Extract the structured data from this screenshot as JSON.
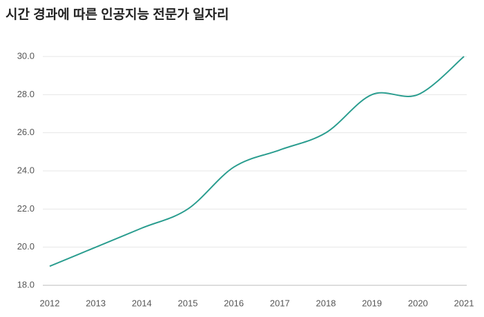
{
  "chart_data": {
    "type": "line",
    "title": "시간 경과에 따른 인공지능 전문가 일자리",
    "x": [
      2012,
      2013,
      2014,
      2015,
      2016,
      2017,
      2018,
      2019,
      2020,
      2021
    ],
    "series": [
      {
        "name": "인공지능 전문가 일자리",
        "color": "#2a9d8f",
        "values": [
          19.0,
          20.0,
          21.0,
          22.0,
          24.2,
          25.1,
          26.0,
          28.0,
          28.0,
          30.0
        ]
      }
    ],
    "xlim": [
      2012,
      2021
    ],
    "xticks": [
      2012,
      2013,
      2014,
      2015,
      2016,
      2017,
      2018,
      2019,
      2020,
      2021
    ],
    "ylim": [
      18,
      30
    ],
    "yticks": [
      {
        "value": 18,
        "label": "18.0"
      },
      {
        "value": 20,
        "label": "20.0"
      },
      {
        "value": 22,
        "label": "22.0"
      },
      {
        "value": 24,
        "label": "24.0"
      },
      {
        "value": 26,
        "label": "26.0"
      },
      {
        "value": 28,
        "label": "28.0"
      },
      {
        "value": 30,
        "label": "30.0"
      }
    ],
    "grid": true
  }
}
